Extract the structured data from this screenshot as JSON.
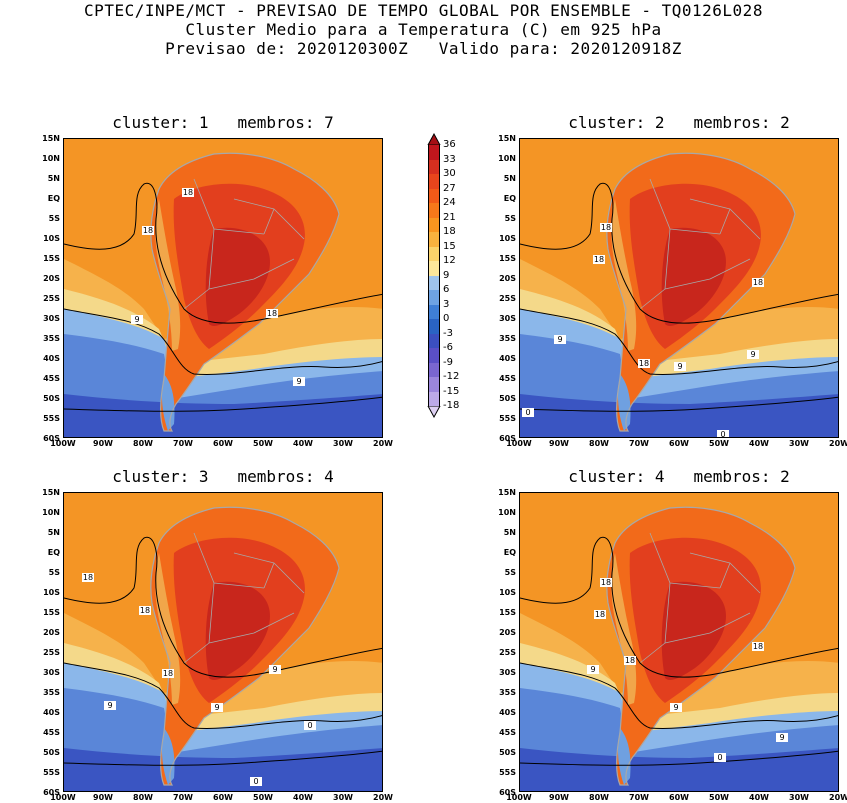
{
  "header": {
    "line1": "CPTEC/INPE/MCT - PREVISAO DE TEMPO GLOBAL POR ENSEMBLE - TQ0126L028",
    "line2": "Cluster Medio para a Temperatura (C) em 925 hPa",
    "line3": "Previsao de: 2020120300Z   Valido para: 2020120918Z"
  },
  "panels": [
    {
      "title": "cluster: 1   membros: 7",
      "contour_labels": [
        "18",
        "18",
        "18",
        "9",
        "9"
      ]
    },
    {
      "title": "cluster: 2   membros: 2",
      "contour_labels": [
        "18",
        "18",
        "18",
        "18",
        "9",
        "9",
        "9",
        "0",
        "0"
      ]
    },
    {
      "title": "cluster: 3   membros: 4",
      "contour_labels": [
        "18",
        "18",
        "18",
        "9",
        "9",
        "9",
        "0",
        "0"
      ]
    },
    {
      "title": "cluster: 4   membros: 2",
      "contour_labels": [
        "18",
        "18",
        "18",
        "18",
        "9",
        "9",
        "9",
        "0"
      ]
    }
  ],
  "axes": {
    "lat_ticks": [
      "15N",
      "10N",
      "5N",
      "EQ",
      "5S",
      "10S",
      "15S",
      "20S",
      "25S",
      "30S",
      "35S",
      "40S",
      "45S",
      "50S",
      "55S",
      "60S"
    ],
    "lon_ticks": [
      "100W",
      "90W",
      "80W",
      "70W",
      "60W",
      "50W",
      "40W",
      "30W",
      "20W"
    ]
  },
  "colorbar": {
    "levels": [
      "36",
      "33",
      "30",
      "27",
      "24",
      "21",
      "18",
      "15",
      "12",
      "9",
      "6",
      "3",
      "0",
      "-3",
      "-6",
      "-9",
      "-12",
      "-15",
      "-18"
    ],
    "colors": [
      "#a50f15",
      "#c0161d",
      "#d62f1f",
      "#e8451c",
      "#f25a18",
      "#f7781a",
      "#f9951f",
      "#f9b23e",
      "#fbd36a",
      "#fde79a",
      "#9fc4ec",
      "#6ea3e3",
      "#3f7fd6",
      "#2a63c4",
      "#3b4fc0",
      "#5a4fc6",
      "#7a66d0",
      "#9b86dc",
      "#bcaae8",
      "#ddd0f2"
    ]
  },
  "palette": {
    "ocean_cold": "#3a55c2",
    "ocean_cool": "#5a86d8",
    "ocean_mid": "#8bb7ea",
    "ocean_warm": "#f4d98a",
    "ocean_hot": "#f6b24b",
    "tropical": "#f49525",
    "land_hot": "#e23f1e",
    "land_veryhot": "#c8261c",
    "land_warm": "#f26a1a",
    "andes": "#f1a64a",
    "patagonia": "#6fa0e0",
    "border": "#a8a8a8",
    "contour": "#000000"
  }
}
